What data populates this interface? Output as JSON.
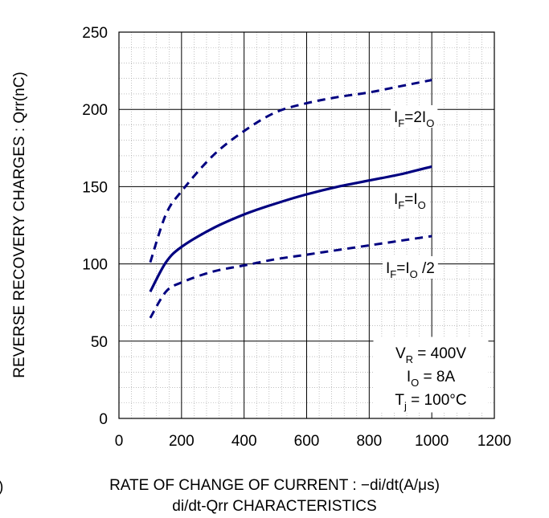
{
  "chart_data": {
    "type": "line",
    "xlabel": "RATE OF CHANGE OF CURRENT : −di/dt(A/μs)",
    "ylabel": "REVERSE RECOVERY  CHARGES : Qrr(nC)",
    "caption": "di/dt-Qrr CHARACTERISTICS",
    "xlim": [
      0,
      1200
    ],
    "ylim": [
      0,
      250
    ],
    "x_ticks": [
      "0",
      "200",
      "400",
      "600",
      "800",
      "1000",
      "1200"
    ],
    "y_ticks": [
      "0",
      "50",
      "100",
      "150",
      "200",
      "250"
    ],
    "grid": true,
    "series": [
      {
        "name": "IF=2IO",
        "style": "dashed",
        "x": [
          100,
          150,
          200,
          300,
          400,
          500,
          600,
          700,
          800,
          900,
          1000
        ],
        "y": [
          101,
          132,
          147,
          170,
          186,
          198,
          204,
          208,
          211,
          215,
          219
        ]
      },
      {
        "name": "IF=IO",
        "style": "solid",
        "x": [
          100,
          150,
          200,
          300,
          400,
          500,
          600,
          700,
          800,
          900,
          1000
        ],
        "y": [
          82,
          101,
          111,
          123,
          132,
          139,
          145,
          150,
          154,
          158,
          163
        ]
      },
      {
        "name": "IF=IO /2",
        "style": "dashed",
        "x": [
          100,
          150,
          200,
          300,
          400,
          500,
          600,
          700,
          800,
          900,
          1000
        ],
        "y": [
          65,
          82,
          88,
          95,
          99,
          103,
          106,
          109,
          112,
          115,
          118
        ]
      }
    ],
    "series_labels": [
      {
        "main": "I",
        "sub1": "F",
        "mid": "=2I",
        "sub2": "O",
        "tail": ""
      },
      {
        "main": "I",
        "sub1": "F",
        "mid": "=I",
        "sub2": "O",
        "tail": ""
      },
      {
        "main": "I",
        "sub1": "F",
        "mid": "=I",
        "sub2": "O",
        "tail": " /2"
      }
    ],
    "conditions": [
      {
        "main": "V",
        "sub": "R",
        "rest": " = 400V"
      },
      {
        "main": "I",
        "sub": "O",
        "rest": " = 8A"
      },
      {
        "main": "T",
        "sub": "j",
        "rest": " = 100°C"
      }
    ],
    "colors": {
      "line": "#000080",
      "grid": "#000000",
      "minor_grid": "#999999"
    },
    "left_margin_fragment": ")"
  }
}
